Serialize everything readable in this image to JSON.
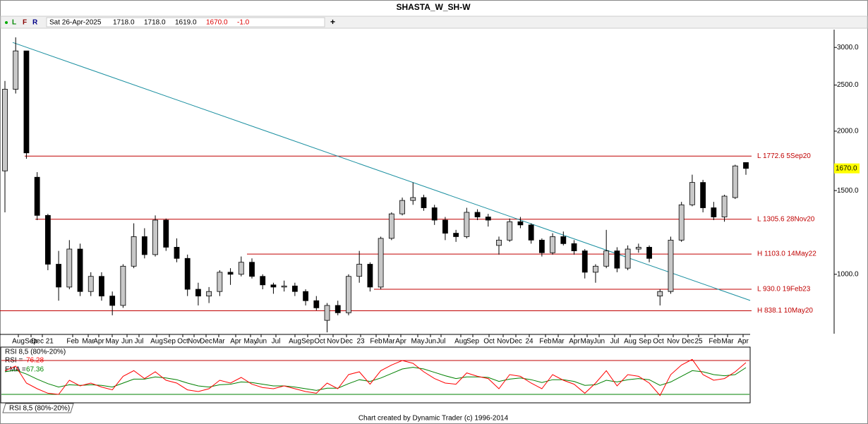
{
  "header": {
    "title": "SHASTA_W_SH-W",
    "icons": [
      "L",
      "F",
      "R"
    ],
    "date": "Sat 26-Apr-2025",
    "open": "1718.0",
    "high": "1718.0",
    "low": "1619.0",
    "close": "1670.0",
    "change": "-1.0",
    "add": "+"
  },
  "chart_data": {
    "type": "candlestick",
    "ohlc": [
      [
        1650,
        2550,
        1350,
        2450
      ],
      [
        2450,
        3150,
        2400,
        2950
      ],
      [
        2950,
        2950,
        1750,
        1800
      ],
      [
        1600,
        1640,
        1300,
        1330
      ],
      [
        1330,
        1340,
        1020,
        1050
      ],
      [
        1050,
        1120,
        880,
        940
      ],
      [
        940,
        1180,
        930,
        1130
      ],
      [
        1130,
        1160,
        900,
        920
      ],
      [
        920,
        1010,
        900,
        990
      ],
      [
        990,
        1010,
        880,
        900
      ],
      [
        900,
        920,
        820,
        860
      ],
      [
        860,
        1050,
        850,
        1040
      ],
      [
        1040,
        1280,
        1030,
        1200
      ],
      [
        1200,
        1250,
        1080,
        1100
      ],
      [
        1100,
        1330,
        1090,
        1300
      ],
      [
        1300,
        1310,
        1120,
        1140
      ],
      [
        1140,
        1190,
        1060,
        1080
      ],
      [
        1080,
        1100,
        900,
        930
      ],
      [
        930,
        960,
        860,
        900
      ],
      [
        900,
        940,
        870,
        920
      ],
      [
        920,
        1020,
        900,
        1010
      ],
      [
        1010,
        1030,
        950,
        1000
      ],
      [
        1000,
        1090,
        990,
        1060
      ],
      [
        1060,
        1080,
        980,
        990
      ],
      [
        990,
        1000,
        930,
        950
      ],
      [
        950,
        960,
        910,
        940
      ],
      [
        940,
        970,
        920,
        945
      ],
      [
        945,
        960,
        900,
        920
      ],
      [
        920,
        930,
        860,
        880
      ],
      [
        880,
        900,
        840,
        850
      ],
      [
        800,
        870,
        755,
        860
      ],
      [
        860,
        880,
        820,
        830
      ],
      [
        830,
        1000,
        820,
        990
      ],
      [
        990,
        1120,
        960,
        1050
      ],
      [
        1050,
        1060,
        920,
        940
      ],
      [
        940,
        1200,
        930,
        1190
      ],
      [
        1190,
        1350,
        1180,
        1340
      ],
      [
        1340,
        1450,
        1330,
        1430
      ],
      [
        1430,
        1560,
        1400,
        1450
      ],
      [
        1450,
        1470,
        1360,
        1380
      ],
      [
        1380,
        1400,
        1270,
        1300
      ],
      [
        1300,
        1320,
        1180,
        1220
      ],
      [
        1220,
        1240,
        1170,
        1200
      ],
      [
        1200,
        1380,
        1190,
        1350
      ],
      [
        1350,
        1370,
        1300,
        1320
      ],
      [
        1320,
        1340,
        1260,
        1300
      ],
      [
        1150,
        1200,
        1100,
        1180
      ],
      [
        1180,
        1310,
        1170,
        1290
      ],
      [
        1290,
        1320,
        1250,
        1270
      ],
      [
        1270,
        1280,
        1160,
        1180
      ],
      [
        1180,
        1190,
        1090,
        1110
      ],
      [
        1110,
        1220,
        1100,
        1200
      ],
      [
        1200,
        1230,
        1150,
        1160
      ],
      [
        1160,
        1180,
        1100,
        1120
      ],
      [
        1120,
        1130,
        980,
        1010
      ],
      [
        1010,
        1050,
        960,
        1040
      ],
      [
        1040,
        1240,
        1030,
        1120
      ],
      [
        1120,
        1140,
        1010,
        1030
      ],
      [
        1030,
        1150,
        1020,
        1130
      ],
      [
        1130,
        1160,
        1110,
        1140
      ],
      [
        1140,
        1150,
        1060,
        1080
      ],
      [
        900,
        930,
        860,
        920
      ],
      [
        920,
        1200,
        910,
        1180
      ],
      [
        1180,
        1420,
        1170,
        1400
      ],
      [
        1400,
        1620,
        1390,
        1560
      ],
      [
        1560,
        1580,
        1350,
        1380
      ],
      [
        1380,
        1420,
        1300,
        1320
      ],
      [
        1320,
        1470,
        1290,
        1460
      ],
      [
        1450,
        1700,
        1440,
        1690
      ],
      [
        1718,
        1718,
        1619,
        1670
      ]
    ],
    "ylim": [
      750,
      3270
    ],
    "log_scale": true,
    "yticks": [
      {
        "value": 1000,
        "label": "1000.0"
      },
      {
        "value": 1500,
        "label": "1500.0"
      },
      {
        "value": 2000,
        "label": "2000.0"
      },
      {
        "value": 2500,
        "label": "2500.0"
      },
      {
        "value": 3000,
        "label": "3000.0"
      }
    ],
    "last_price": {
      "value": 1670,
      "label": "1670.0"
    },
    "x_labels": [
      "Aug",
      "Sep",
      "Dec 21",
      "Feb",
      "Mar",
      "Apr",
      "May",
      "Jun",
      "Jul",
      "Aug",
      "Sep",
      "Oct",
      "Nov",
      "Dec",
      "Mar",
      "Apr",
      "May",
      "Jun",
      "Jul",
      "Aug",
      "Sep",
      "Oct",
      "Nov",
      "Dec",
      "23",
      "Feb",
      "Mar",
      "Apr",
      "May",
      "Jun",
      "Jul",
      "Aug",
      "Sep",
      "Oct",
      "Nov",
      "Dec",
      "24",
      "Feb",
      "Mar",
      "Apr",
      "May",
      "Jun",
      "Jul",
      "Aug",
      "Sep",
      "Oct",
      "Nov",
      "Dec",
      "25",
      "Feb",
      "Mar",
      "Apr"
    ],
    "levels": [
      {
        "value": 1772.6,
        "label": "L 1772.6 5Sep20"
      },
      {
        "value": 1305.6,
        "label": "L 1305.6 28Nov20"
      },
      {
        "value": 1103.0,
        "label": "H 1103.0 14May22"
      },
      {
        "value": 930.0,
        "label": "L 930.0 19Feb23"
      },
      {
        "value": 838.1,
        "label": "H 838.1 10May20"
      }
    ],
    "trendline": [
      3073,
      881
    ],
    "colors": {
      "up": "#c8c8c8",
      "down": "#000000",
      "level": "#c00000",
      "trendline": "#1a8fa0"
    }
  },
  "rsi_panel": {
    "type": "line",
    "title": "RSI 8,5 (80%-20%)",
    "series": [
      {
        "name": "RSI =",
        "color": "#ff0000",
        "values": [
          62,
          70,
          40,
          30,
          22,
          20,
          45,
          35,
          40,
          33,
          28,
          52,
          62,
          48,
          60,
          45,
          40,
          28,
          25,
          30,
          45,
          40,
          50,
          38,
          32,
          30,
          35,
          30,
          25,
          22,
          40,
          30,
          55,
          60,
          38,
          62,
          72,
          80,
          75,
          60,
          48,
          40,
          38,
          58,
          52,
          48,
          30,
          55,
          52,
          40,
          30,
          55,
          45,
          38,
          22,
          40,
          62,
          35,
          55,
          52,
          40,
          18,
          55,
          72,
          82,
          55,
          45,
          48,
          60,
          76.28
        ]
      },
      {
        "name": "EMA =",
        "color": "#008000",
        "values": [
          60,
          63,
          56,
          47,
          39,
          33,
          37,
          36,
          37,
          36,
          33,
          40,
          47,
          47,
          51,
          49,
          46,
          40,
          35,
          33,
          37,
          38,
          42,
          41,
          38,
          35,
          35,
          33,
          30,
          27,
          31,
          31,
          39,
          46,
          43,
          49,
          57,
          65,
          68,
          65,
          59,
          53,
          48,
          51,
          51,
          50,
          43,
          47,
          49,
          46,
          41,
          46,
          46,
          43,
          36,
          37,
          45,
          42,
          46,
          48,
          46,
          36,
          42,
          52,
          62,
          60,
          55,
          53,
          55,
          67.36
        ]
      }
    ],
    "ylim": [
      0,
      100
    ],
    "levels": [
      80,
      20
    ],
    "level_colors": [
      "#c00000",
      "#008000"
    ]
  },
  "tab": "RSI 8,5 (80%-20%)",
  "footer": "Chart created by Dynamic Trader  (c) 1996-2014"
}
